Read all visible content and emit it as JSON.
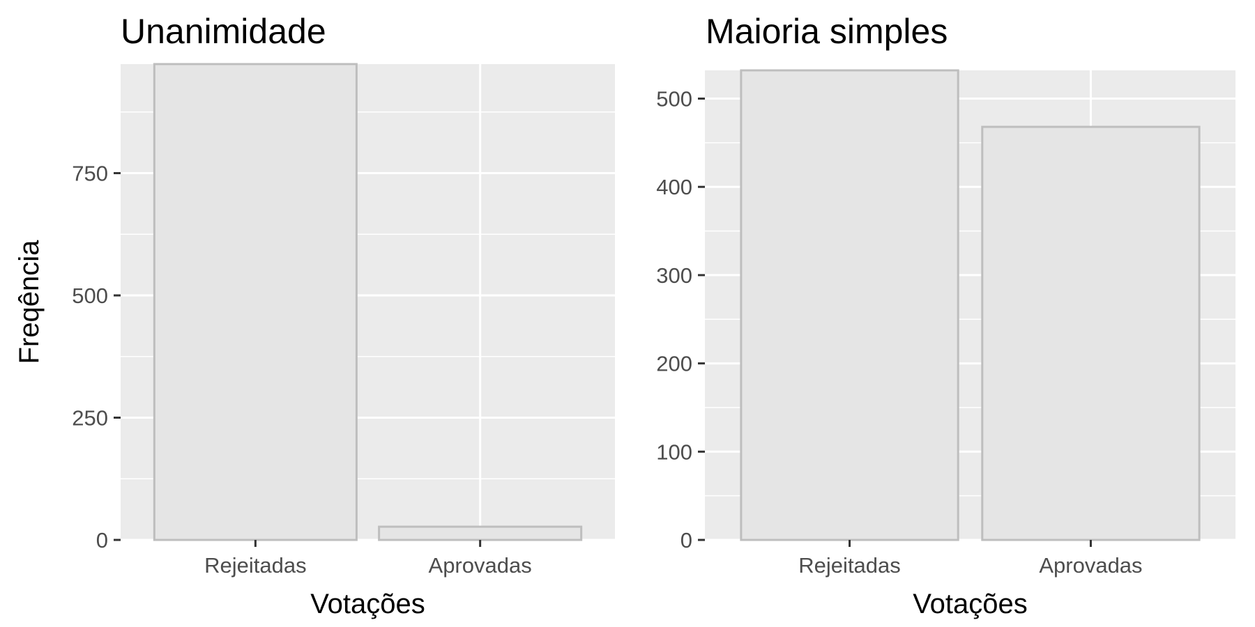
{
  "chart_data": [
    {
      "type": "bar",
      "title": "Unanimidade",
      "xlabel": "Votações",
      "ylabel": "Freqência",
      "categories": [
        "Rejeitadas",
        "Aprovadas"
      ],
      "values": [
        973,
        27
      ],
      "ylim": [
        0,
        973
      ],
      "yticks": [
        0,
        250,
        500,
        750
      ],
      "grid": true,
      "bar_fill": "#e5e5e5",
      "bar_outline": "#bebebe",
      "panel_background": "#ebebeb"
    },
    {
      "type": "bar",
      "title": "Maioria simples",
      "xlabel": "Votações",
      "ylabel": "",
      "categories": [
        "Rejeitadas",
        "Aprovadas"
      ],
      "values": [
        532,
        468
      ],
      "ylim": [
        0,
        532
      ],
      "yticks": [
        0,
        100,
        200,
        300,
        400,
        500
      ],
      "grid": true,
      "bar_fill": "#e5e5e5",
      "bar_outline": "#bebebe",
      "panel_background": "#ebebeb"
    }
  ]
}
